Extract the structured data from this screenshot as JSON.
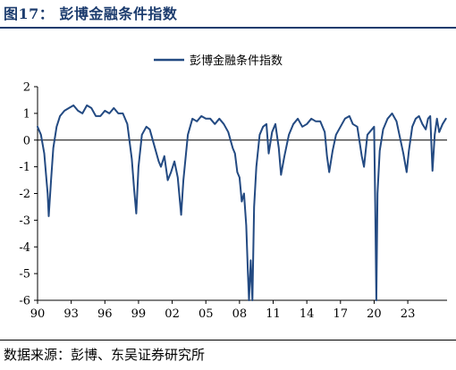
{
  "figure": {
    "title": "图17： 彭博金融条件指数",
    "source": "数据来源：彭博、东吴证券研究所"
  },
  "colors": {
    "series": "#234a82",
    "title": "#1c3c6e"
  },
  "chart_data": {
    "type": "line",
    "title": "",
    "xlabel": "",
    "ylabel": "",
    "ylim": [
      -6,
      2
    ],
    "yticks": [
      -6,
      -5,
      -4,
      -3,
      -2,
      -1,
      0,
      1,
      2
    ],
    "xlim": [
      1990,
      2026.5
    ],
    "xticks": [
      1990,
      1993,
      1996,
      1999,
      2002,
      2005,
      2008,
      2011,
      2014,
      2017,
      2020,
      2023
    ],
    "xtick_labels": [
      "90",
      "93",
      "96",
      "99",
      "02",
      "05",
      "08",
      "11",
      "14",
      "17",
      "20",
      "23"
    ],
    "grid": false,
    "legend": "top-center",
    "series": [
      {
        "name": "彭博金融条件指数",
        "x": [
          1990.0,
          1990.3,
          1990.6,
          1990.8,
          1990.9,
          1991.0,
          1991.2,
          1991.4,
          1991.7,
          1992.0,
          1992.4,
          1992.8,
          1993.2,
          1993.6,
          1994.0,
          1994.4,
          1994.8,
          1995.2,
          1995.6,
          1996.0,
          1996.4,
          1996.8,
          1997.2,
          1997.6,
          1998.0,
          1998.4,
          1998.6,
          1998.8,
          1999.0,
          1999.3,
          1999.7,
          2000.0,
          2000.4,
          2000.8,
          2001.0,
          2001.3,
          2001.6,
          2001.9,
          2002.2,
          2002.5,
          2002.8,
          2003.0,
          2003.4,
          2003.8,
          2004.2,
          2004.6,
          2005.0,
          2005.4,
          2005.8,
          2006.2,
          2006.6,
          2007.0,
          2007.4,
          2007.6,
          2007.8,
          2008.0,
          2008.2,
          2008.4,
          2008.6,
          2008.75,
          2008.85,
          2009.0,
          2009.15,
          2009.3,
          2009.5,
          2009.8,
          2010.1,
          2010.4,
          2010.6,
          2010.9,
          2011.2,
          2011.5,
          2011.7,
          2012.0,
          2012.4,
          2012.8,
          2013.2,
          2013.6,
          2014.0,
          2014.4,
          2014.8,
          2015.2,
          2015.6,
          2015.8,
          2016.0,
          2016.3,
          2016.6,
          2017.0,
          2017.4,
          2017.8,
          2018.1,
          2018.5,
          2018.9,
          2019.1,
          2019.4,
          2019.8,
          2020.0,
          2020.1,
          2020.2,
          2020.3,
          2020.5,
          2020.8,
          2021.2,
          2021.6,
          2022.0,
          2022.3,
          2022.6,
          2022.9,
          2023.1,
          2023.4,
          2023.7,
          2024.0,
          2024.3,
          2024.6,
          2024.8,
          2025.0,
          2025.2,
          2025.4,
          2025.6,
          2025.8,
          2026.1,
          2026.4
        ],
        "y": [
          0.5,
          0.2,
          -0.5,
          -1.5,
          -2.0,
          -2.85,
          -1.5,
          -0.3,
          0.5,
          0.9,
          1.1,
          1.2,
          1.3,
          1.1,
          1.0,
          1.3,
          1.2,
          0.9,
          0.9,
          1.1,
          1.0,
          1.2,
          1.0,
          1.0,
          0.6,
          -0.7,
          -1.8,
          -2.75,
          -1.0,
          0.2,
          0.5,
          0.4,
          -0.2,
          -0.8,
          -1.0,
          -0.6,
          -1.5,
          -1.2,
          -0.8,
          -1.4,
          -2.8,
          -1.5,
          0.2,
          0.8,
          0.7,
          0.9,
          0.8,
          0.8,
          0.6,
          0.8,
          0.6,
          0.3,
          -0.3,
          -0.5,
          -1.2,
          -1.4,
          -2.3,
          -2.0,
          -3.2,
          -5.0,
          -6.0,
          -4.5,
          -6.0,
          -2.5,
          -1.0,
          0.2,
          0.5,
          0.6,
          -0.5,
          0.3,
          0.6,
          -0.3,
          -1.3,
          -0.6,
          0.2,
          0.6,
          0.8,
          0.5,
          0.6,
          0.8,
          0.7,
          0.7,
          0.3,
          -0.6,
          -1.2,
          -0.4,
          0.2,
          0.5,
          0.8,
          0.9,
          0.6,
          0.5,
          -0.6,
          -1.0,
          0.2,
          0.4,
          0.5,
          -2.5,
          -6.0,
          -2.0,
          -0.4,
          0.4,
          0.8,
          1.0,
          0.7,
          0.1,
          -0.5,
          -1.2,
          -0.4,
          0.5,
          0.8,
          0.9,
          0.6,
          0.4,
          0.8,
          0.9,
          -1.15,
          0.2,
          0.8,
          0.3,
          0.6,
          0.8
        ]
      }
    ]
  }
}
